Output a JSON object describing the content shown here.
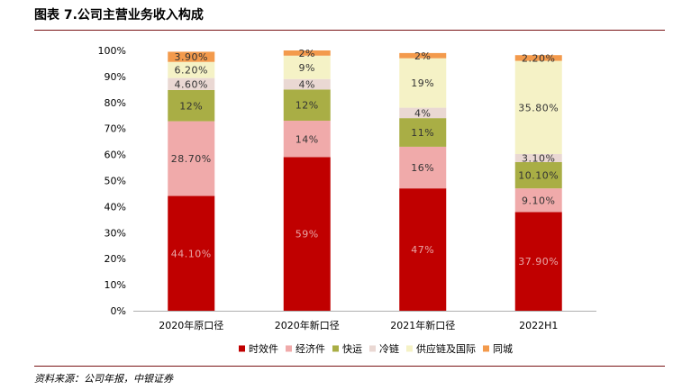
{
  "header": {
    "title": "图表 7.公司主营业务收入构成"
  },
  "footer": {
    "source": "资料来源：公司年报，中银证券"
  },
  "chart_data": {
    "type": "bar",
    "stacked": true,
    "title": "",
    "xlabel": "",
    "ylabel": "",
    "ylim": [
      0,
      100
    ],
    "y_ticks": [
      "0%",
      "10%",
      "20%",
      "30%",
      "40%",
      "50%",
      "60%",
      "70%",
      "80%",
      "90%",
      "100%"
    ],
    "categories": [
      "2020年原口径",
      "2020年新口径",
      "2021年新口径",
      "2022H1"
    ],
    "legend_position": "bottom",
    "series": [
      {
        "name": "时效件",
        "color": "#c00000",
        "label_color": "#e8a6a6",
        "values": [
          44.1,
          59,
          47,
          37.9
        ],
        "labels": [
          "44.10%",
          "59%",
          "47%",
          "37.90%"
        ]
      },
      {
        "name": "经济件",
        "color": "#f0aaaa",
        "label_color": "#333333",
        "values": [
          28.7,
          14,
          16,
          9.1
        ],
        "labels": [
          "28.70%",
          "14%",
          "16%",
          "9.10%"
        ]
      },
      {
        "name": "快运",
        "color": "#a9ae45",
        "label_color": "#333333",
        "values": [
          12,
          12,
          11,
          10.1
        ],
        "labels": [
          "12%",
          "12%",
          "11%",
          "10.10%"
        ]
      },
      {
        "name": "冷链",
        "color": "#ead8d3",
        "label_color": "#333333",
        "values": [
          4.6,
          4,
          4,
          3.1
        ],
        "labels": [
          "4.60%",
          "4%",
          "4%",
          "3.10%"
        ]
      },
      {
        "name": "供应链及国际",
        "color": "#f5f2c6",
        "label_color": "#333333",
        "values": [
          6.2,
          9,
          19,
          35.8
        ],
        "labels": [
          "6.20%",
          "9%",
          "19%",
          "35.80%"
        ]
      },
      {
        "name": "同城",
        "color": "#f39a4c",
        "label_color": "#333333",
        "values": [
          3.9,
          2,
          2,
          2.2
        ],
        "labels": [
          "3.90%",
          "2%",
          "2%",
          "2.20%"
        ]
      }
    ]
  }
}
